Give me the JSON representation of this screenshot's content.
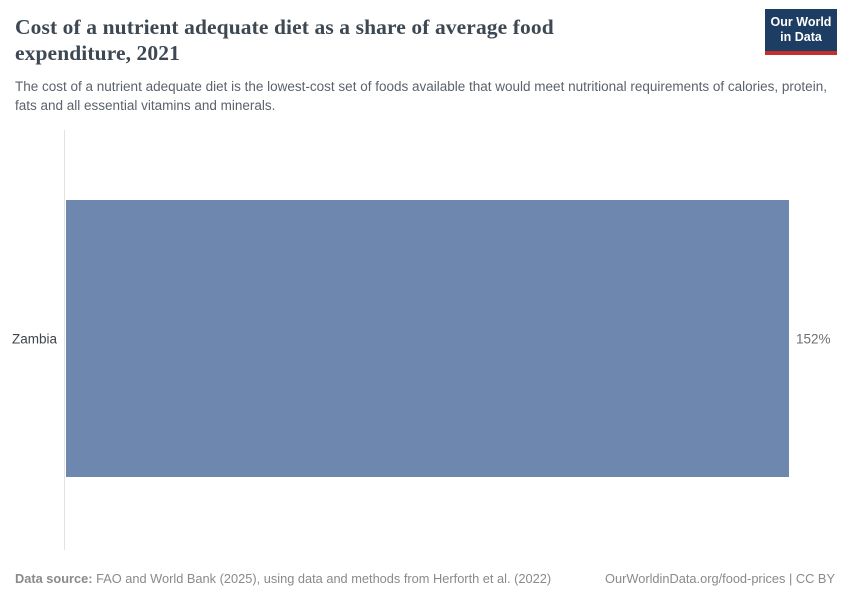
{
  "header": {
    "title": "Cost of a nutrient adequate diet as a share of average food expenditure, 2021",
    "subtitle": "The cost of a nutrient adequate diet is the lowest-cost set of foods available that would meet nutritional requirements of calories, protein, fats and all essential vitamins and minerals.",
    "logo": {
      "line1": "Our World",
      "line2": "in Data"
    }
  },
  "chart_data": {
    "type": "bar",
    "orientation": "horizontal",
    "categories": [
      "Zambia"
    ],
    "values": [
      152
    ],
    "value_labels": [
      "152%"
    ],
    "title": "Cost of a nutrient adequate diet as a share of average food expenditure, 2021",
    "xlabel": "",
    "ylabel": "",
    "xlim": [
      0,
      152
    ],
    "grid": false,
    "legend": "none"
  },
  "footer": {
    "datasource_label": "Data source:",
    "datasource_text": " FAO and World Bank (2025), using data and methods from Herforth et al. (2022)",
    "link_text": "OurWorldinData.org/food-prices | CC BY"
  },
  "colors": {
    "bar": "#6d87ae",
    "logo_background": "#1d3d63",
    "logo_red_strip": "#c5302f",
    "title_text": "#3d4852",
    "subtitle_text": "#5b626b",
    "footer_text": "#8a8a8a",
    "axis_line": "#e2e2e2"
  }
}
